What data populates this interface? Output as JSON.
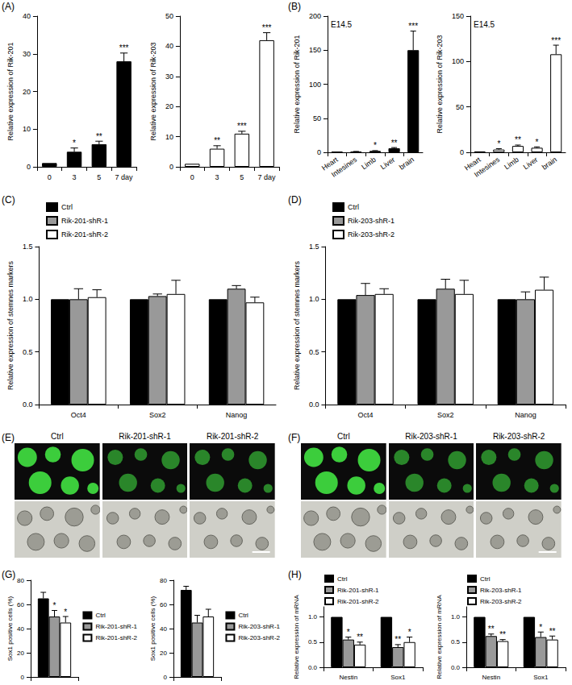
{
  "chart_data": [
    {
      "panel": "(A)",
      "type": "bar",
      "y_label": "Relative expression of Rik-201",
      "categories": [
        "0",
        "3",
        "5",
        "7 day"
      ],
      "values": [
        1,
        4,
        6,
        28
      ],
      "errors": [
        0,
        1,
        0.8,
        2.2
      ],
      "annotations": [
        null,
        "*",
        "**",
        "***"
      ],
      "color": "#000000",
      "ylim": [
        0,
        40
      ],
      "yticks": [
        0,
        10,
        20,
        30,
        40
      ],
      "grid": false
    },
    {
      "type": "bar",
      "y_label": "Relative expression of Rik-203",
      "categories": [
        "0",
        "3",
        "5",
        "7 day"
      ],
      "values": [
        1,
        6,
        11,
        42
      ],
      "errors": [
        0,
        1,
        0.8,
        2.5
      ],
      "annotations": [
        null,
        "**",
        "***",
        "***"
      ],
      "color": "#ffffff",
      "ylim": [
        0,
        50
      ],
      "yticks": [
        0,
        10,
        20,
        30,
        40,
        50
      ],
      "grid": false
    },
    {
      "panel": "(B)",
      "type": "bar",
      "subtitle": "E14.5",
      "y_label": "Relative expression of Rik-201",
      "categories": [
        "Heart",
        "Intesines",
        "Limb",
        "Liver",
        "brain"
      ],
      "values": [
        1,
        1,
        2,
        6,
        150
      ],
      "errors": [
        0,
        0.3,
        0.5,
        1,
        28
      ],
      "annotations": [
        null,
        null,
        "*",
        "**",
        "***"
      ],
      "color": "#000000",
      "ylim": [
        0,
        200
      ],
      "yticks": [
        0,
        50,
        100,
        150,
        200
      ],
      "grid": false
    },
    {
      "type": "bar",
      "subtitle": "E14.5",
      "y_label": "Relative expression of Rik-203",
      "categories": [
        "Heart",
        "Intesines",
        "Limb",
        "Liver",
        "brain"
      ],
      "values": [
        1,
        3,
        7,
        5,
        108
      ],
      "errors": [
        0,
        1,
        1,
        1,
        10
      ],
      "annotations": [
        null,
        "*",
        "**",
        "*",
        "***"
      ],
      "color": "#ffffff",
      "ylim": [
        0,
        150
      ],
      "yticks": [
        0,
        50,
        100,
        150
      ],
      "grid": false
    },
    {
      "panel": "(C)",
      "type": "bar",
      "y_label": "Relative expression of stemnes markers",
      "categories": [
        "Oct4",
        "Sox2",
        "Nanog"
      ],
      "series": [
        {
          "name": "Ctrl",
          "color": "#000000",
          "values": [
            1,
            1,
            1
          ],
          "errors": [
            0,
            0,
            0
          ]
        },
        {
          "name": "Rik-201-shR-1",
          "color": "#999999",
          "values": [
            1.0,
            1.03,
            1.1
          ],
          "errors": [
            0.1,
            0.02,
            0.03
          ]
        },
        {
          "name": "Rik-201-shR-2",
          "color": "#ffffff",
          "values": [
            1.02,
            1.05,
            0.97
          ],
          "errors": [
            0.07,
            0.13,
            0.05
          ]
        }
      ],
      "ylim": [
        0,
        1.5
      ],
      "yticks": [
        {
          "value": 0,
          "label": "0.0"
        },
        {
          "value": 0.5,
          "label": "0.5"
        },
        {
          "value": 1,
          "label": "1.0"
        },
        {
          "value": 1.5,
          "label": "1.5"
        }
      ],
      "legend": "top-left",
      "grid": false
    },
    {
      "panel": "(D)",
      "type": "bar",
      "y_label": "Relative expression of stemnes markers",
      "categories": [
        "Oct4",
        "Sox2",
        "Nanog"
      ],
      "series": [
        {
          "name": "Ctrl",
          "color": "#000000",
          "values": [
            1,
            1,
            1
          ],
          "errors": [
            0,
            0,
            0
          ]
        },
        {
          "name": "Rik-203-shR-1",
          "color": "#999999",
          "values": [
            1.04,
            1.1,
            1.0
          ],
          "errors": [
            0.11,
            0.09,
            0.07
          ]
        },
        {
          "name": "Rik-203-shR-2",
          "color": "#ffffff",
          "values": [
            1.05,
            1.05,
            1.09
          ],
          "errors": [
            0.05,
            0.13,
            0.12
          ]
        }
      ],
      "ylim": [
        0,
        1.5
      ],
      "yticks": [
        {
          "value": 0,
          "label": "0.0"
        },
        {
          "value": 0.5,
          "label": "0.5"
        },
        {
          "value": 1,
          "label": "1.0"
        },
        {
          "value": 1.5,
          "label": "1.5"
        }
      ],
      "legend": "top-left",
      "grid": false
    },
    {
      "panel": "(G)",
      "type": "bar",
      "y_label": "Sox1 positive cells (%)",
      "categories": [
        null
      ],
      "series": [
        {
          "name": "Ctrl",
          "color": "#000000",
          "values": [
            65
          ],
          "errors": [
            5
          ]
        },
        {
          "name": "Rik-201-shR-1",
          "color": "#999999",
          "values": [
            50
          ],
          "errors": [
            5
          ],
          "annotations": [
            "*"
          ]
        },
        {
          "name": "Rik-201-shR-2",
          "color": "#ffffff",
          "values": [
            45
          ],
          "errors": [
            5
          ],
          "annotations": [
            "*"
          ]
        }
      ],
      "ylim": [
        0,
        80
      ],
      "yticks": [
        0,
        20,
        40,
        60,
        80
      ],
      "legend": "right",
      "grid": false
    },
    {
      "type": "bar",
      "y_label": "Sox1 positive cells (%)",
      "categories": [
        null
      ],
      "series": [
        {
          "name": "Ctrl",
          "color": "#000000",
          "values": [
            72
          ],
          "errors": [
            3
          ]
        },
        {
          "name": "Rik-203-shR-1",
          "color": "#999999",
          "values": [
            45
          ],
          "errors": [
            6
          ]
        },
        {
          "name": "Rik-203-shR-2",
          "color": "#ffffff",
          "values": [
            50
          ],
          "errors": [
            6
          ]
        }
      ],
      "ylim": [
        0,
        80
      ],
      "yticks": [
        0,
        20,
        40,
        60,
        80
      ],
      "legend": "right",
      "grid": false
    },
    {
      "panel": "(H)",
      "type": "bar",
      "y_label": "Relative expression of mRNA",
      "categories": [
        "Nestin",
        "Sox1"
      ],
      "series": [
        {
          "name": "Ctrl",
          "color": "#000000",
          "values": [
            1,
            1
          ],
          "errors": [
            0,
            0
          ]
        },
        {
          "name": "Rik-201-shR-1",
          "color": "#999999",
          "values": [
            0.55,
            0.4
          ],
          "errors": [
            0.05,
            0.05
          ],
          "annotations": [
            "*",
            "**"
          ]
        },
        {
          "name": "Rik-201-shR-2",
          "color": "#ffffff",
          "values": [
            0.45,
            0.5
          ],
          "errors": [
            0.05,
            0.1
          ],
          "annotations": [
            "**",
            "*"
          ]
        }
      ],
      "ylim": [
        0,
        1.2
      ],
      "yticks": [
        {
          "value": 0,
          "label": "0.0"
        },
        {
          "value": 0.5,
          "label": "0.5"
        },
        {
          "value": 1,
          "label": "1.0"
        }
      ],
      "legend": "top",
      "grid": false
    },
    {
      "type": "bar",
      "y_label": "Relative expression of mRNA",
      "categories": [
        "Nestin",
        "Sox1"
      ],
      "series": [
        {
          "name": "Ctrl",
          "color": "#000000",
          "values": [
            1,
            1
          ],
          "errors": [
            0,
            0
          ]
        },
        {
          "name": "Rik-203-shR-1",
          "color": "#999999",
          "values": [
            0.62,
            0.6
          ],
          "errors": [
            0.04,
            0.1
          ],
          "annotations": [
            "**",
            "*"
          ]
        },
        {
          "name": "Rik-203-shR-2",
          "color": "#ffffff",
          "values": [
            0.52,
            0.55
          ],
          "errors": [
            0.03,
            0.07
          ],
          "annotations": [
            "**",
            "**"
          ]
        }
      ],
      "ylim": [
        0,
        1.2
      ],
      "yticks": [
        {
          "value": 0,
          "label": "0.0"
        },
        {
          "value": 0.5,
          "label": "0.5"
        },
        {
          "value": 1,
          "label": "1.0"
        }
      ],
      "legend": "top",
      "grid": false
    }
  ],
  "images": [
    {
      "panel": "(E)",
      "labels": [
        "Ctrl",
        "Rik-201-shR-1",
        "Rik-201-shR-2"
      ]
    },
    {
      "panel": "(F)",
      "labels": [
        "Ctrl",
        "Rik-203-shR-1",
        "Rik-203-shR-2"
      ]
    }
  ]
}
